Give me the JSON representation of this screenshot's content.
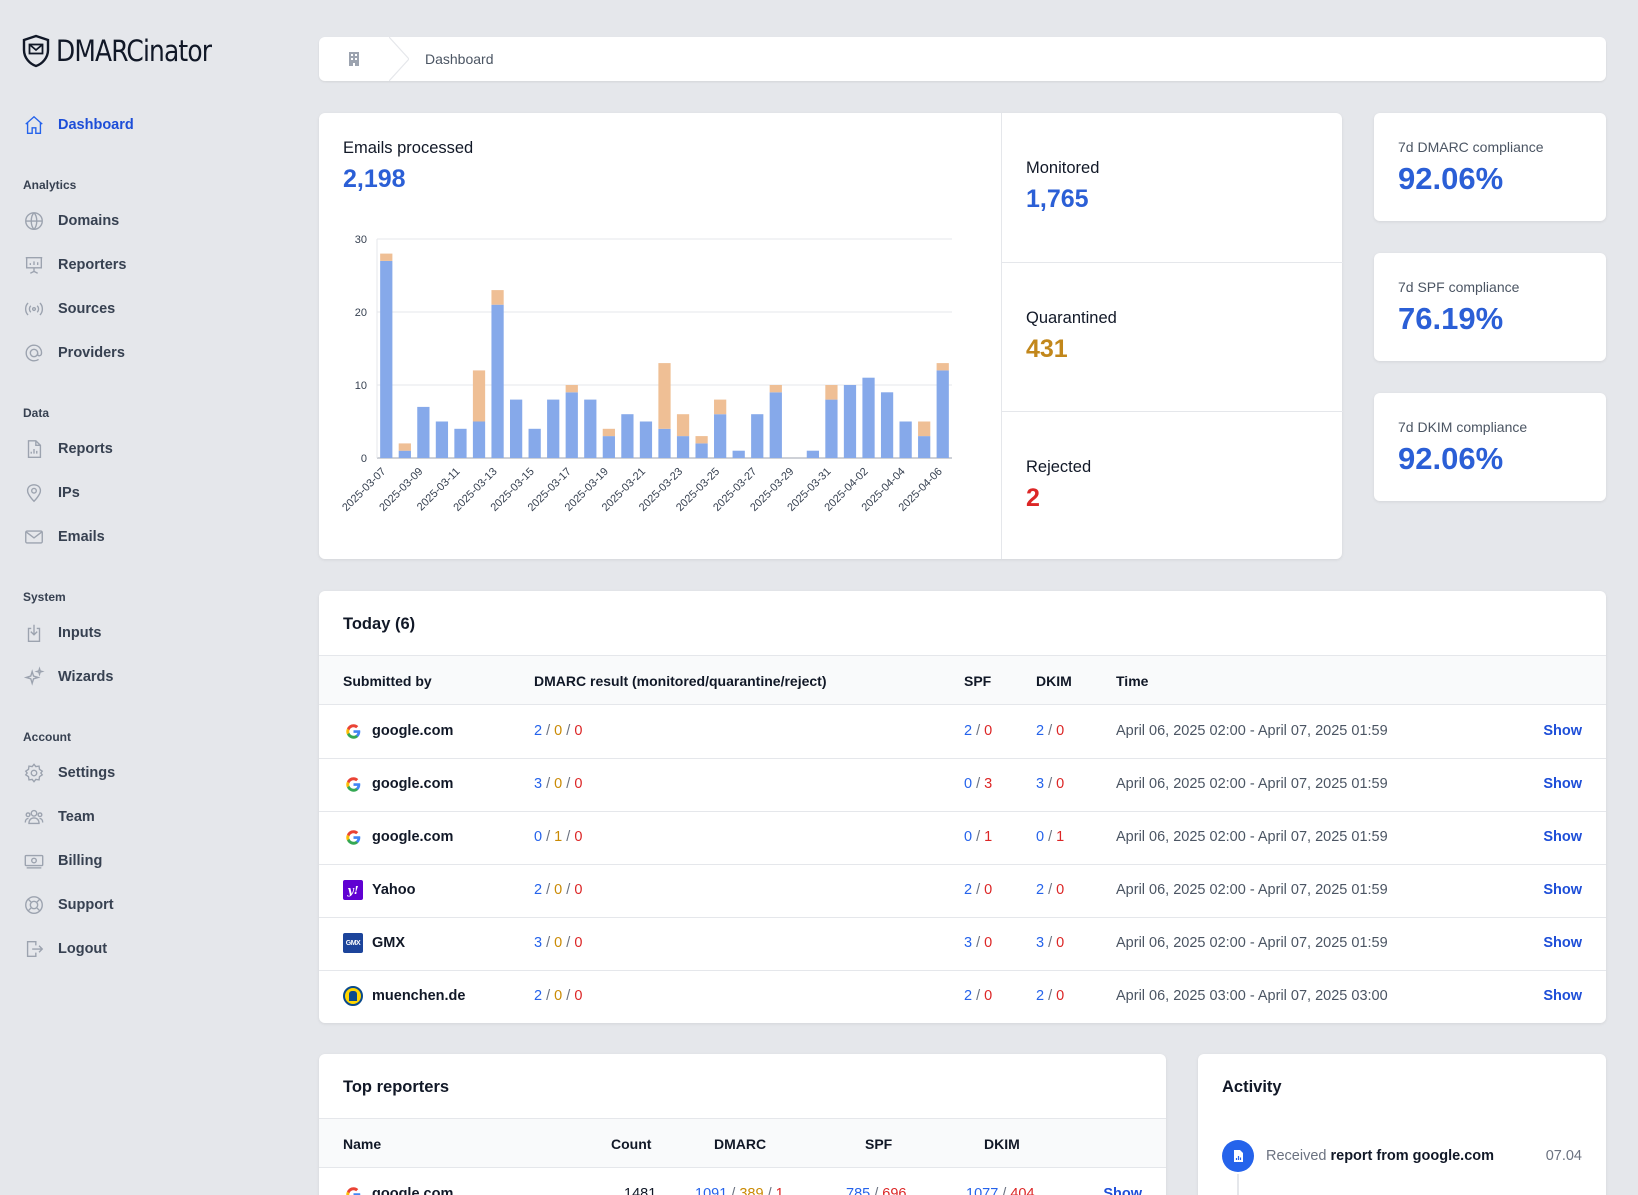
{
  "app": {
    "name": "DMARCinator"
  },
  "nav": {
    "dashboard": "Dashboard",
    "section_analytics": "Analytics",
    "domains": "Domains",
    "reporters": "Reporters",
    "sources": "Sources",
    "providers": "Providers",
    "section_data": "Data",
    "reports": "Reports",
    "ips": "IPs",
    "emails": "Emails",
    "section_system": "System",
    "inputs": "Inputs",
    "wizards": "Wizards",
    "section_account": "Account",
    "settings": "Settings",
    "team": "Team",
    "billing": "Billing",
    "support": "Support",
    "logout": "Logout"
  },
  "breadcrumb": {
    "current": "Dashboard"
  },
  "emails_processed": {
    "label": "Emails processed",
    "value": "2,198"
  },
  "stats": {
    "monitored": {
      "label": "Monitored",
      "value": "1,765"
    },
    "quarantined": {
      "label": "Quarantined",
      "value": "431"
    },
    "rejected": {
      "label": "Rejected",
      "value": "2"
    }
  },
  "compliance": {
    "dmarc": {
      "label": "7d DMARC compliance",
      "value": "92.06%"
    },
    "spf": {
      "label": "7d SPF compliance",
      "value": "76.19%"
    },
    "dkim": {
      "label": "7d DKIM compliance",
      "value": "92.06%"
    }
  },
  "chart_data": {
    "type": "bar",
    "stacked": true,
    "ylim": [
      0,
      30
    ],
    "yticks": [
      0,
      10,
      20,
      30
    ],
    "grid": true,
    "categories": [
      "2025-03-07",
      "2025-03-08",
      "2025-03-09",
      "2025-03-10",
      "2025-03-11",
      "2025-03-12",
      "2025-03-13",
      "2025-03-14",
      "2025-03-15",
      "2025-03-16",
      "2025-03-17",
      "2025-03-18",
      "2025-03-19",
      "2025-03-20",
      "2025-03-21",
      "2025-03-22",
      "2025-03-23",
      "2025-03-24",
      "2025-03-25",
      "2025-03-26",
      "2025-03-27",
      "2025-03-28",
      "2025-03-29",
      "2025-03-30",
      "2025-03-31",
      "2025-04-01",
      "2025-04-02",
      "2025-04-03",
      "2025-04-04",
      "2025-04-05",
      "2025-04-06"
    ],
    "xtick_labels": [
      "2025-03-07",
      "2025-03-09",
      "2025-03-11",
      "2025-03-13",
      "2025-03-15",
      "2025-03-17",
      "2025-03-19",
      "2025-03-21",
      "2025-03-23",
      "2025-03-25",
      "2025-03-27",
      "2025-03-29",
      "2025-03-31",
      "2025-04-02",
      "2025-04-04",
      "2025-04-06"
    ],
    "series": [
      {
        "color": "#86a9ea",
        "values": [
          27,
          1,
          7,
          5,
          4,
          5,
          21,
          8,
          4,
          8,
          9,
          8,
          3,
          6,
          5,
          4,
          3,
          2,
          6,
          1,
          6,
          9,
          0,
          1,
          8,
          10,
          11,
          9,
          5,
          3,
          12
        ]
      },
      {
        "color": "#efbf95",
        "values": [
          1,
          1,
          0,
          0,
          0,
          7,
          2,
          0,
          0,
          0,
          1,
          0,
          1,
          0,
          0,
          9,
          3,
          1,
          2,
          0,
          0,
          1,
          0,
          0,
          2,
          0,
          0,
          0,
          0,
          2,
          1
        ]
      }
    ]
  },
  "today": {
    "title": "Today (6)",
    "headers": {
      "submitted_by": "Submitted by",
      "dmarc": "DMARC result (monitored/quarantine/reject)",
      "spf": "SPF",
      "dkim": "DKIM",
      "time": "Time"
    },
    "show_label": "Show",
    "rows": [
      {
        "icon": "google-icon",
        "name": "google.com",
        "d_mon": "2",
        "d_quar": "0",
        "d_rej": "0",
        "spf_pass": "2",
        "spf_fail": "0",
        "dkim_pass": "2",
        "dkim_fail": "0",
        "time": "April 06, 2025 02:00 - April 07, 2025 01:59"
      },
      {
        "icon": "google-icon",
        "name": "google.com",
        "d_mon": "3",
        "d_quar": "0",
        "d_rej": "0",
        "spf_pass": "0",
        "spf_fail": "3",
        "dkim_pass": "3",
        "dkim_fail": "0",
        "time": "April 06, 2025 02:00 - April 07, 2025 01:59"
      },
      {
        "icon": "google-icon",
        "name": "google.com",
        "d_mon": "0",
        "d_quar": "1",
        "d_rej": "0",
        "spf_pass": "0",
        "spf_fail": "1",
        "dkim_pass": "0",
        "dkim_fail": "1",
        "time": "April 06, 2025 02:00 - April 07, 2025 01:59"
      },
      {
        "icon": "yahoo-icon",
        "name": "Yahoo",
        "d_mon": "2",
        "d_quar": "0",
        "d_rej": "0",
        "spf_pass": "2",
        "spf_fail": "0",
        "dkim_pass": "2",
        "dkim_fail": "0",
        "time": "April 06, 2025 02:00 - April 07, 2025 01:59"
      },
      {
        "icon": "gmx-icon",
        "name": "GMX",
        "d_mon": "3",
        "d_quar": "0",
        "d_rej": "0",
        "spf_pass": "3",
        "spf_fail": "0",
        "dkim_pass": "3",
        "dkim_fail": "0",
        "time": "April 06, 2025 02:00 - April 07, 2025 01:59"
      },
      {
        "icon": "muenchen-icon",
        "name": "muenchen.de",
        "d_mon": "2",
        "d_quar": "0",
        "d_rej": "0",
        "spf_pass": "2",
        "spf_fail": "0",
        "dkim_pass": "2",
        "dkim_fail": "0",
        "time": "April 06, 2025 03:00 - April 07, 2025 03:00"
      }
    ]
  },
  "top_reporters": {
    "title": "Top reporters",
    "headers": {
      "name": "Name",
      "count": "Count",
      "dmarc": "DMARC",
      "spf": "SPF",
      "dkim": "DKIM"
    },
    "show_label": "Show",
    "rows": [
      {
        "icon": "google-icon",
        "name": "google.com",
        "count": "1481",
        "d_mon": "1091",
        "d_quar": "389",
        "d_rej": "1",
        "spf_pass": "785",
        "spf_fail": "696",
        "dkim_pass": "1077",
        "dkim_fail": "404"
      }
    ]
  },
  "activity": {
    "title": "Activity",
    "items": [
      {
        "icon": "report-icon",
        "prefix": "Received",
        "subject": "report from google.com",
        "date": "07.04"
      }
    ]
  },
  "colors": {
    "accent": "#2563eb",
    "quarantine": "#ca8a04",
    "reject": "#dc2626"
  }
}
